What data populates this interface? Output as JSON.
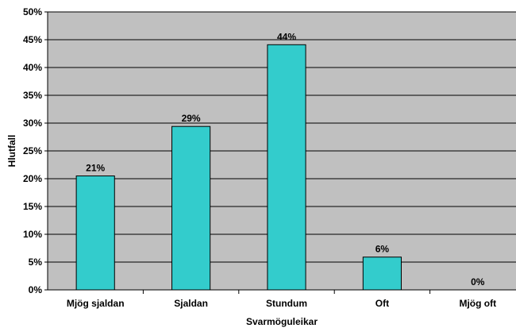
{
  "chart_data": {
    "type": "bar",
    "categories": [
      "Mjög sjaldan",
      "Sjaldan",
      "Stundum",
      "Oft",
      "Mjög oft"
    ],
    "values": [
      20.5,
      29.4,
      44.1,
      5.9,
      0
    ],
    "data_labels": [
      "21%",
      "29%",
      "44%",
      "6%",
      "0%"
    ],
    "ylim": [
      0,
      50
    ],
    "yticks": [
      0,
      5,
      10,
      15,
      20,
      25,
      30,
      35,
      40,
      45,
      50
    ],
    "ytick_labels": [
      "0%",
      "5%",
      "10%",
      "15%",
      "20%",
      "25%",
      "30%",
      "35%",
      "40%",
      "45%",
      "50%"
    ],
    "xlabel": "Svarmöguleikar",
    "ylabel": "Hlutfall",
    "grid": true,
    "colors": {
      "bar": "#33CCCC",
      "plot_bg": "#C0C0C0",
      "grid": "#000000"
    }
  }
}
